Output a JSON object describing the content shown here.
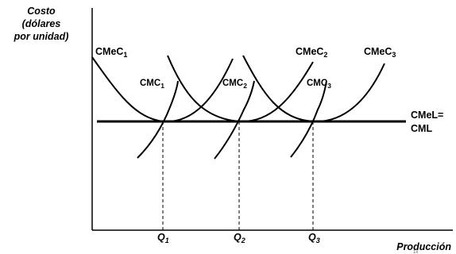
{
  "chart_data": {
    "type": "line",
    "ylabel": [
      "Costo",
      "(dólares",
      "por unidad)"
    ],
    "xlabel": "Producción",
    "footnote": "1x",
    "x_ticks": [
      {
        "main": "Q",
        "sub": "1"
      },
      {
        "main": "Q",
        "sub": "2"
      },
      {
        "main": "Q",
        "sub": "3"
      }
    ],
    "long_run_line": {
      "label_line1": "CMeL=",
      "label_line2": "CML"
    },
    "curves": [
      {
        "name": "CMeC",
        "sub": "1",
        "kind": "cmec",
        "min_at": 1
      },
      {
        "name": "CMC",
        "sub": "1",
        "kind": "cmc",
        "cross_at": 1
      },
      {
        "name": "CMC",
        "sub": "2",
        "kind": "cmc",
        "cross_at": 2
      },
      {
        "name": "CMeC",
        "sub": "2",
        "kind": "cmec",
        "min_at": 2
      },
      {
        "name": "CMC",
        "sub": "3",
        "kind": "cmc",
        "cross_at": 3
      },
      {
        "name": "CMeC",
        "sub": "3",
        "kind": "cmec",
        "min_at": 3
      }
    ]
  }
}
